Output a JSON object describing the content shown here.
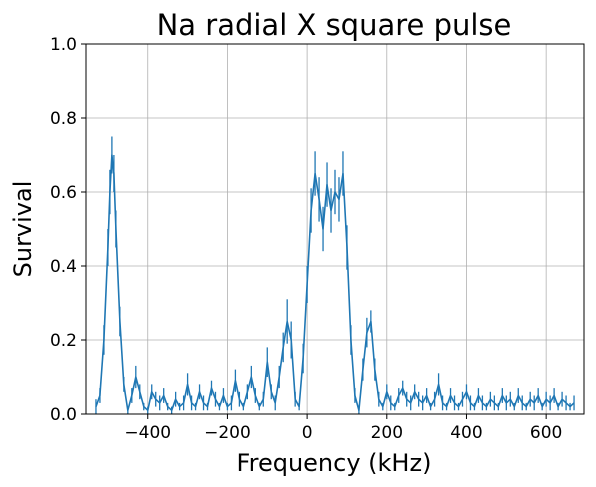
{
  "chart_data": {
    "type": "line",
    "title": "Na radial X square pulse",
    "xlabel": "Frequency (kHz)",
    "ylabel": "Survival",
    "xlim": [
      -555,
      695
    ],
    "ylim": [
      0,
      1.0
    ],
    "xticks": [
      -400,
      -200,
      0,
      200,
      400,
      600
    ],
    "xtick_labels": [
      "−400",
      "−200",
      "0",
      "200",
      "400",
      "600"
    ],
    "yticks": [
      0,
      0.2,
      0.4,
      0.6,
      0.8,
      1.0
    ],
    "ytick_labels": [
      "0.0",
      "0.2",
      "0.4",
      "0.6",
      "0.8",
      "1.0"
    ],
    "grid": true,
    "legend": "none",
    "series": [
      {
        "color": "#1f77b4",
        "x": [
          -530,
          -520,
          -510,
          -500,
          -495,
          -490,
          -485,
          -480,
          -470,
          -460,
          -450,
          -440,
          -430,
          -420,
          -410,
          -400,
          -390,
          -380,
          -370,
          -360,
          -350,
          -340,
          -330,
          -320,
          -310,
          -300,
          -290,
          -280,
          -270,
          -260,
          -250,
          -240,
          -230,
          -220,
          -210,
          -200,
          -190,
          -180,
          -170,
          -160,
          -150,
          -140,
          -130,
          -120,
          -110,
          -100,
          -90,
          -80,
          -70,
          -60,
          -50,
          -40,
          -30,
          -20,
          -10,
          0,
          10,
          20,
          30,
          40,
          50,
          60,
          70,
          80,
          90,
          100,
          110,
          120,
          130,
          140,
          150,
          160,
          170,
          180,
          190,
          200,
          210,
          220,
          230,
          240,
          250,
          260,
          270,
          280,
          290,
          300,
          310,
          320,
          330,
          340,
          350,
          360,
          370,
          380,
          390,
          400,
          410,
          420,
          430,
          440,
          450,
          460,
          470,
          480,
          490,
          500,
          510,
          520,
          530,
          540,
          550,
          560,
          570,
          580,
          590,
          600,
          610,
          620,
          630,
          640,
          650,
          660,
          670
        ],
        "y": [
          0.02,
          0.05,
          0.2,
          0.45,
          0.6,
          0.7,
          0.65,
          0.5,
          0.25,
          0.08,
          0.01,
          0.05,
          0.1,
          0.06,
          0.02,
          0.01,
          0.06,
          0.04,
          0.03,
          0.05,
          0.02,
          0.01,
          0.04,
          0.02,
          0.03,
          0.08,
          0.03,
          0.02,
          0.06,
          0.03,
          0.02,
          0.07,
          0.04,
          0.02,
          0.05,
          0.02,
          0.03,
          0.09,
          0.04,
          0.02,
          0.06,
          0.1,
          0.05,
          0.02,
          0.04,
          0.14,
          0.06,
          0.03,
          0.1,
          0.18,
          0.25,
          0.2,
          0.04,
          0.02,
          0.15,
          0.35,
          0.55,
          0.65,
          0.58,
          0.5,
          0.62,
          0.55,
          0.6,
          0.58,
          0.65,
          0.45,
          0.2,
          0.05,
          0.01,
          0.12,
          0.22,
          0.25,
          0.12,
          0.04,
          0.02,
          0.06,
          0.03,
          0.02,
          0.05,
          0.07,
          0.04,
          0.03,
          0.06,
          0.04,
          0.03,
          0.05,
          0.02,
          0.04,
          0.08,
          0.03,
          0.02,
          0.05,
          0.03,
          0.02,
          0.04,
          0.06,
          0.03,
          0.02,
          0.05,
          0.03,
          0.02,
          0.04,
          0.03,
          0.02,
          0.05,
          0.03,
          0.04,
          0.02,
          0.05,
          0.03,
          0.02,
          0.04,
          0.03,
          0.05,
          0.02,
          0.04,
          0.03,
          0.05,
          0.02,
          0.04,
          0.03,
          0.02,
          0.03
        ],
        "yerr": [
          0.02,
          0.02,
          0.04,
          0.05,
          0.06,
          0.05,
          0.05,
          0.05,
          0.04,
          0.02,
          0.01,
          0.02,
          0.03,
          0.02,
          0.01,
          0.01,
          0.02,
          0.02,
          0.02,
          0.02,
          0.01,
          0.01,
          0.02,
          0.01,
          0.02,
          0.03,
          0.02,
          0.01,
          0.02,
          0.02,
          0.01,
          0.02,
          0.02,
          0.01,
          0.02,
          0.01,
          0.02,
          0.03,
          0.02,
          0.01,
          0.02,
          0.03,
          0.02,
          0.01,
          0.02,
          0.04,
          0.02,
          0.02,
          0.03,
          0.04,
          0.06,
          0.05,
          0.02,
          0.01,
          0.04,
          0.05,
          0.06,
          0.06,
          0.06,
          0.06,
          0.06,
          0.06,
          0.06,
          0.06,
          0.06,
          0.06,
          0.04,
          0.02,
          0.01,
          0.03,
          0.04,
          0.03,
          0.03,
          0.02,
          0.01,
          0.02,
          0.02,
          0.01,
          0.02,
          0.02,
          0.02,
          0.02,
          0.02,
          0.02,
          0.02,
          0.02,
          0.01,
          0.02,
          0.03,
          0.02,
          0.01,
          0.02,
          0.02,
          0.01,
          0.02,
          0.02,
          0.02,
          0.01,
          0.02,
          0.02,
          0.01,
          0.02,
          0.02,
          0.01,
          0.02,
          0.02,
          0.02,
          0.01,
          0.02,
          0.02,
          0.01,
          0.02,
          0.02,
          0.02,
          0.01,
          0.02,
          0.02,
          0.02,
          0.01,
          0.02,
          0.02,
          0.01,
          0.02
        ]
      }
    ]
  }
}
